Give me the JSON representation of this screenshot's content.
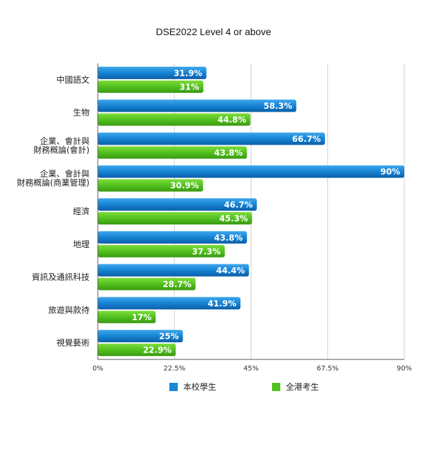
{
  "chart_data": {
    "type": "bar",
    "orientation": "horizontal",
    "title": "DSE2022 Level 4 or above",
    "categories": [
      [
        "中國語文"
      ],
      [
        "生物"
      ],
      [
        "企業、會計與",
        "財務概論(會計)"
      ],
      [
        "企業、會計與",
        "財務概論(商業管理)"
      ],
      [
        "經濟"
      ],
      [
        "地理"
      ],
      [
        "資訊及通訊科技"
      ],
      [
        "旅遊與款待"
      ],
      [
        "視覺藝術"
      ]
    ],
    "series": [
      {
        "name": "本校學生",
        "color": "#1a86d6",
        "values": [
          31.9,
          58.3,
          66.7,
          90,
          46.7,
          43.8,
          44.4,
          41.9,
          25
        ],
        "labels": [
          "31.9%",
          "58.3%",
          "66.7%",
          "90%",
          "46.7%",
          "43.8%",
          "44.4%",
          "41.9%",
          "25%"
        ]
      },
      {
        "name": "全港考生",
        "color": "#52c11e",
        "values": [
          31,
          44.8,
          43.8,
          30.9,
          45.3,
          37.3,
          28.7,
          17,
          22.9
        ],
        "labels": [
          "31%",
          "44.8%",
          "43.8%",
          "30.9%",
          "45.3%",
          "37.3%",
          "28.7%",
          "17%",
          "22.9%"
        ]
      }
    ],
    "xlim": [
      0,
      90
    ],
    "xticks": [
      0,
      22.5,
      45,
      67.5,
      90
    ],
    "xtick_labels": [
      "0%",
      "22.5%",
      "45%",
      "67.5%",
      "90%"
    ],
    "grid": true,
    "legend_position": "bottom"
  }
}
